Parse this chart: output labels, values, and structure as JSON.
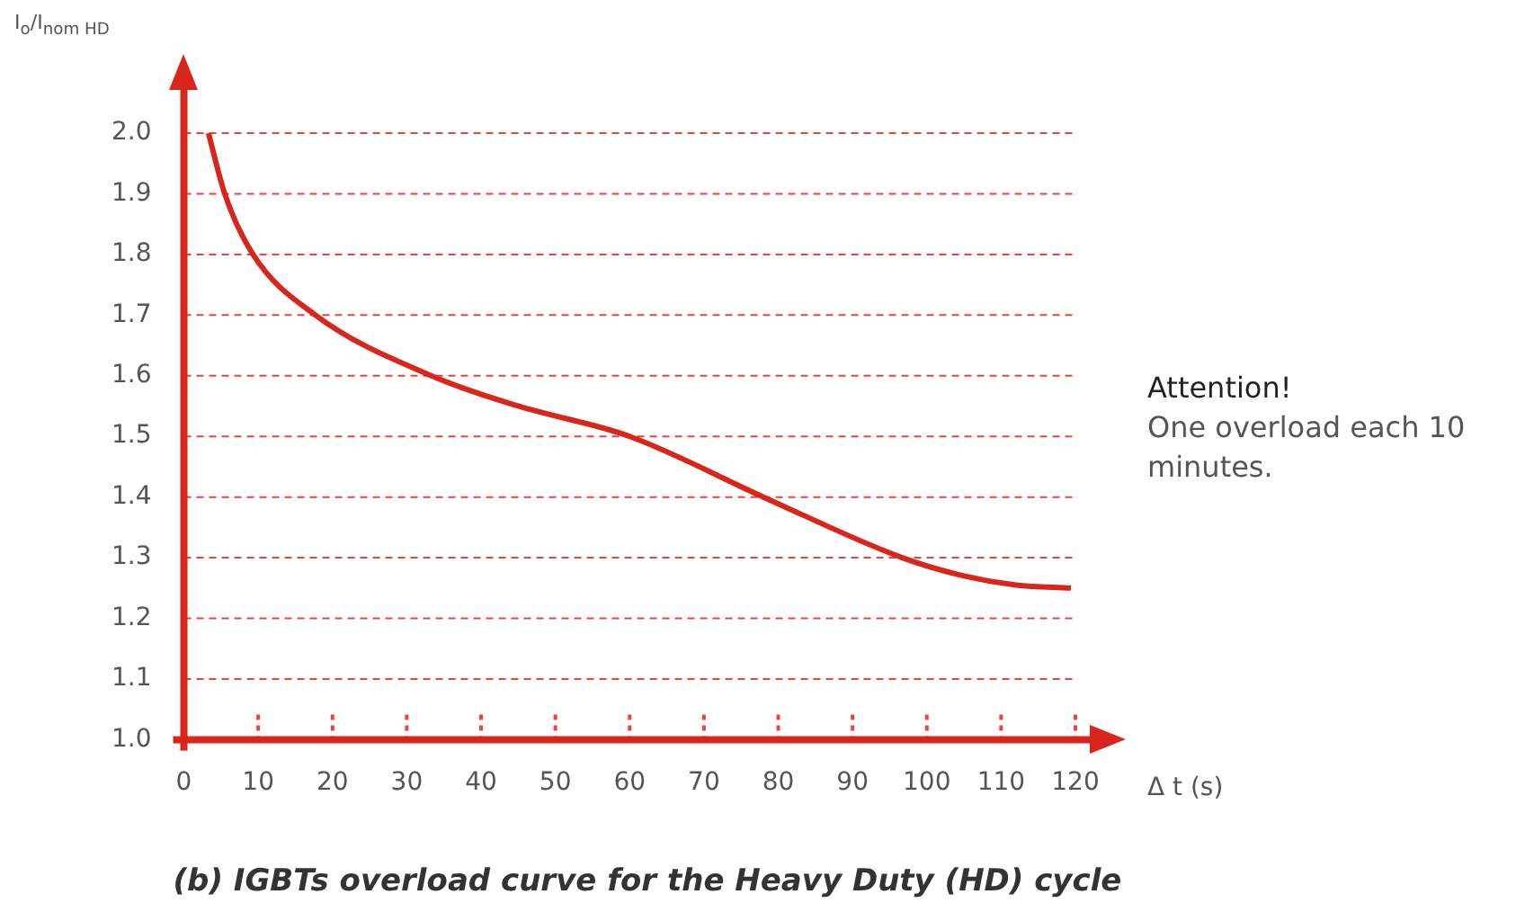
{
  "chart_data": {
    "type": "line",
    "title": "(b) IGBTs overload curve for the Heavy Duty (HD) cycle",
    "xlabel": "Δ t (s)",
    "ylabel": "I$_{o}$/I$_{nom HD}$",
    "annotations": [
      "Attention!",
      "One overload each 10 minutes."
    ],
    "series": [
      {
        "color": "#d9261c",
        "x": [
          3.3,
          5.5,
          9.3,
          17.7,
          33.3,
          45,
          60,
          78,
          96.7,
          105,
          112,
          119.4
        ],
        "values": [
          2.0,
          1.9,
          1.8,
          1.7,
          1.6,
          1.55,
          1.5,
          1.4,
          1.3,
          1.27,
          1.255,
          1.25
        ]
      }
    ],
    "xlim": [
      0,
      120
    ],
    "xticks": [
      0,
      10,
      20,
      30,
      40,
      50,
      60,
      70,
      80,
      90,
      100,
      110,
      120
    ],
    "ylim": [
      1.0,
      2.0
    ],
    "yticks": [
      {
        "value": 1,
        "label": "1.0"
      },
      1.1,
      1.2,
      1.3,
      1.4,
      1.5,
      1.6,
      1.7,
      1.8,
      1.9,
      {
        "value": 2,
        "label": "2.0"
      }
    ],
    "grid": "y",
    "legend": false,
    "marker": "none",
    "line_style": "solid"
  }
}
